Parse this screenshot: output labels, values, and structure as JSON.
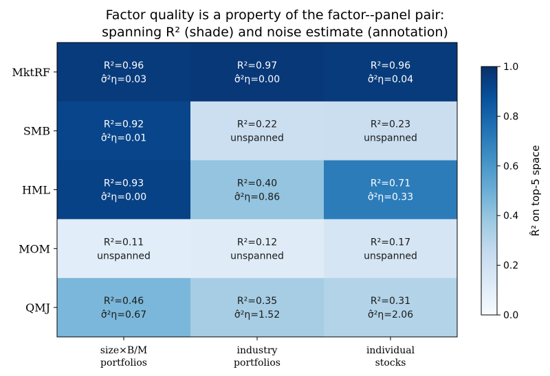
{
  "chart_data": {
    "type": "heatmap",
    "title_lines": [
      "Factor quality is a property of the factor--panel pair:",
      "spanning R² (shade) and noise estimate (annotation)"
    ],
    "rows": [
      "MktRF",
      "SMB",
      "HML",
      "MOM",
      "QMJ"
    ],
    "columns": [
      [
        "size×B/M",
        "portfolios"
      ],
      [
        "industry",
        "portfolios"
      ],
      [
        "individual",
        "stocks"
      ]
    ],
    "values": [
      [
        0.96,
        0.97,
        0.96
      ],
      [
        0.92,
        0.22,
        0.23
      ],
      [
        0.93,
        0.4,
        0.71
      ],
      [
        0.11,
        0.12,
        0.17
      ],
      [
        0.46,
        0.35,
        0.31
      ]
    ],
    "cell_lines": [
      [
        [
          "R²=0.96",
          "σ̂²η=0.03"
        ],
        [
          "R²=0.97",
          "σ̂²η=0.00"
        ],
        [
          "R²=0.96",
          "σ̂²η=0.04"
        ]
      ],
      [
        [
          "R²=0.92",
          "σ̂²η=0.01"
        ],
        [
          "R²=0.22",
          "unspanned"
        ],
        [
          "R²=0.23",
          "unspanned"
        ]
      ],
      [
        [
          "R²=0.93",
          "σ̂²η=0.00"
        ],
        [
          "R²=0.40",
          "σ̂²η=0.86"
        ],
        [
          "R²=0.71",
          "σ̂²η=0.33"
        ]
      ],
      [
        [
          "R²=0.11",
          "unspanned"
        ],
        [
          "R²=0.12",
          "unspanned"
        ],
        [
          "R²=0.17",
          "unspanned"
        ]
      ],
      [
        [
          "R²=0.46",
          "σ̂²η=0.67"
        ],
        [
          "R²=0.35",
          "σ̂²η=1.52"
        ],
        [
          "R²=0.31",
          "σ̂²η=2.06"
        ]
      ]
    ],
    "colorbar": {
      "label": "R̂² on top-5 space",
      "range": [
        0.0,
        1.0
      ],
      "ticks": [
        "0.0",
        "0.2",
        "0.4",
        "0.6",
        "0.8",
        "1.0"
      ],
      "colormap": "Blues"
    }
  }
}
